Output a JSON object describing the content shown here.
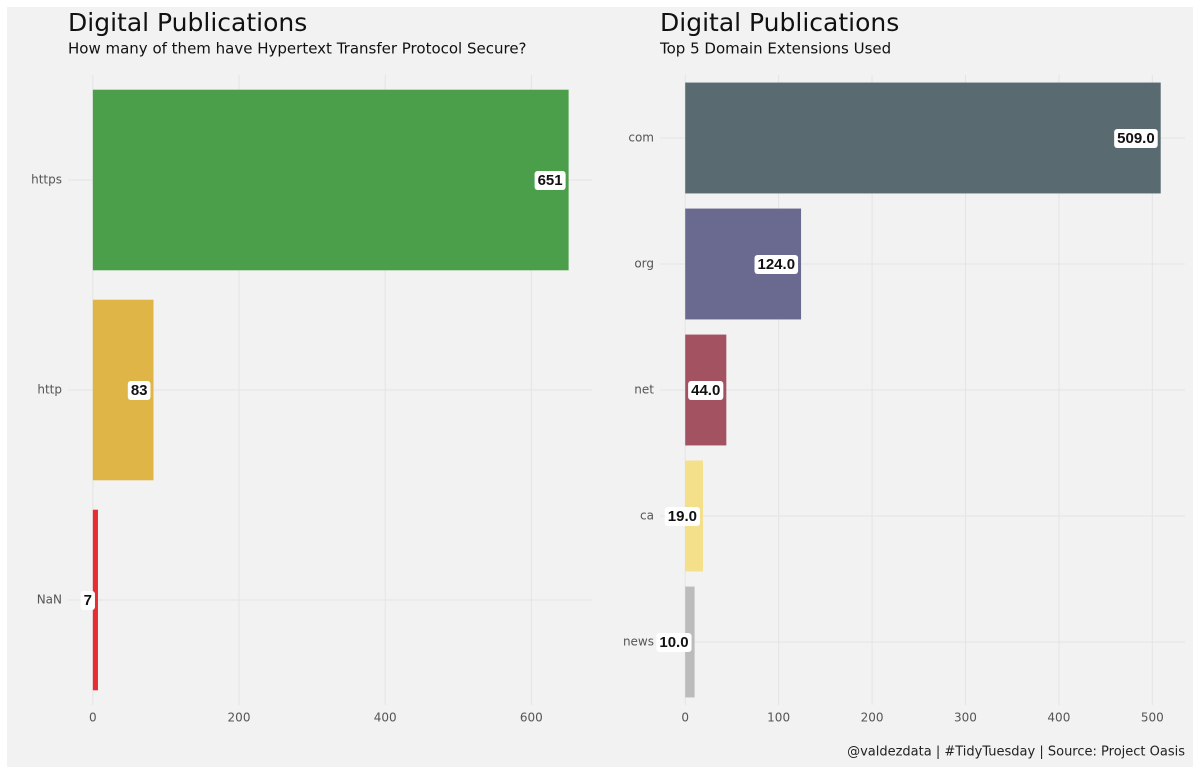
{
  "chart_data": [
    {
      "type": "bar",
      "orientation": "horizontal",
      "title": "Digital Publications",
      "subtitle": "How many of them have Hypertext Transfer Protocol Secure?",
      "categories": [
        "https",
        "http",
        "NaN"
      ],
      "values": [
        651,
        83,
        7
      ],
      "colors": [
        "#4c9f4a",
        "#e0b548",
        "#e52e33"
      ],
      "xlim": [
        -34,
        683
      ],
      "xticks": [
        0,
        200,
        400,
        600
      ],
      "grid": true
    },
    {
      "type": "bar",
      "orientation": "horizontal",
      "title": "Digital Publications",
      "subtitle": "Top 5 Domain Extensions Used",
      "categories": [
        "com",
        "org",
        "net",
        "ca",
        "news"
      ],
      "values": [
        509,
        124,
        44,
        19,
        10
      ],
      "value_labels": [
        "509.0",
        "124.0",
        "44.0",
        "19.0",
        "10.0"
      ],
      "colors": [
        "#596a71",
        "#6a698f",
        "#a35262",
        "#f4df8a",
        "#bbbbbb"
      ],
      "xlim": [
        -27,
        535
      ],
      "xticks": [
        0,
        100,
        200,
        300,
        400,
        500
      ],
      "grid": true
    }
  ],
  "caption": "@valdezdata | #TidyTuesday | Source: Project Oasis"
}
